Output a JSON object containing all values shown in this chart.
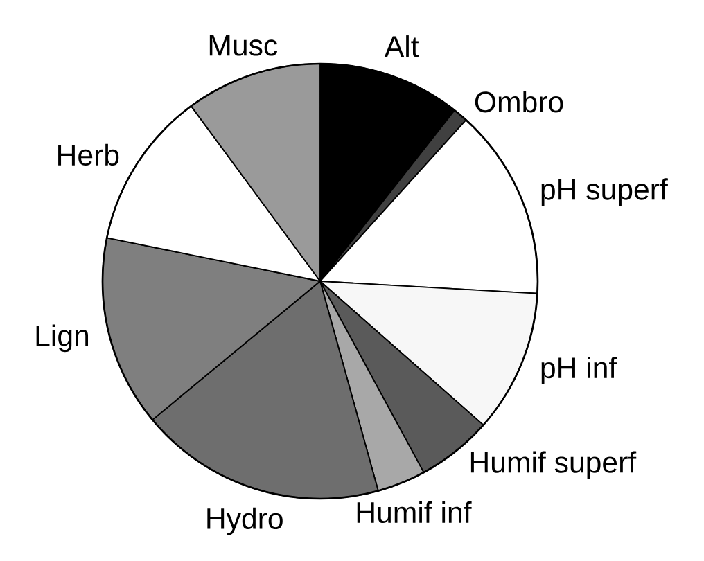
{
  "chart_data": {
    "type": "pie",
    "categories": [
      "Alt",
      "Ombro",
      "pH superf",
      "pH inf",
      "Humif superf",
      "Humif inf",
      "Hydro",
      "Lign",
      "Herb",
      "Musc"
    ],
    "values": [
      10.6,
      1.1,
      14.2,
      10.6,
      5.6,
      3.6,
      18.3,
      14.2,
      11.7,
      10.1
    ],
    "colors": [
      "#000000",
      "#404040",
      "#ffffff",
      "#f7f7f7",
      "#5a5a5a",
      "#a8a8a8",
      "#6e6e6e",
      "#7f7f7f",
      "#ffffff",
      "#9a9a9a"
    ]
  }
}
